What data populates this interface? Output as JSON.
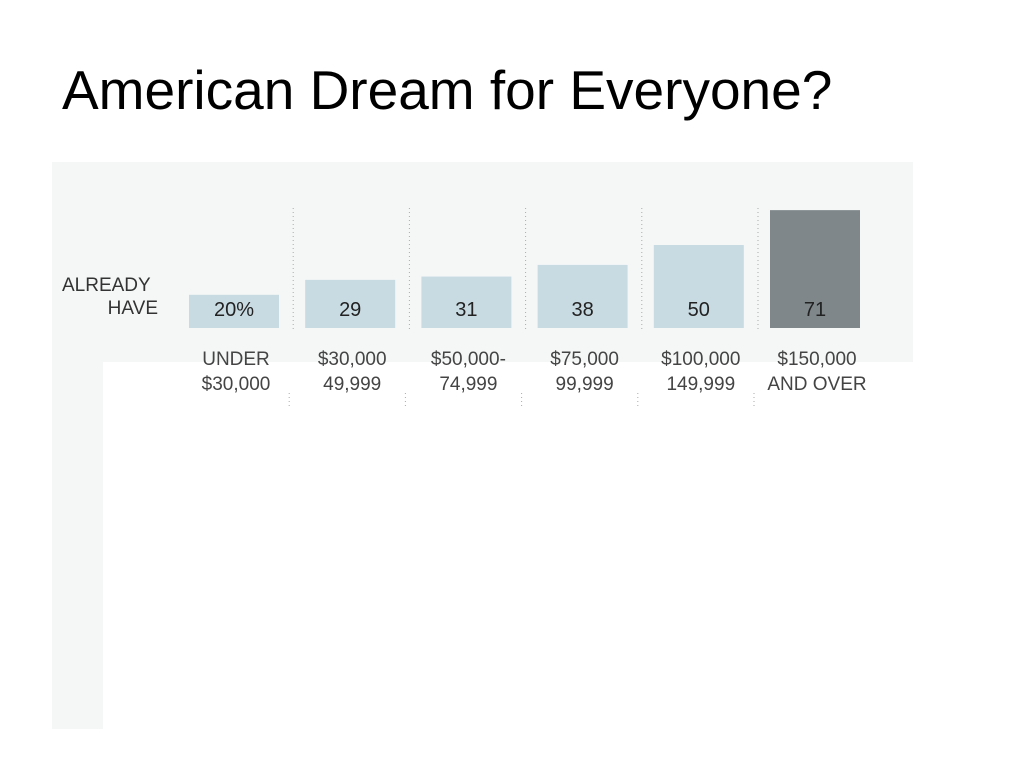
{
  "title": "American Dream for Everyone?",
  "chart_data": {
    "type": "bar",
    "series_label": [
      "ALREADY",
      "HAVE"
    ],
    "categories": [
      [
        "UNDER",
        "$30,000"
      ],
      [
        "$30,000",
        "49,999"
      ],
      [
        "$50,000-",
        "74,999"
      ],
      [
        "$75,000",
        "99,999"
      ],
      [
        "$100,000",
        "149,999"
      ],
      [
        "$150,000",
        "AND OVER"
      ]
    ],
    "values": [
      20,
      29,
      31,
      38,
      50,
      71
    ],
    "value_labels": [
      "20%",
      "29",
      "31",
      "38",
      "50",
      "71"
    ],
    "unit": "%",
    "ylim": [
      0,
      100
    ],
    "grid": false,
    "colors": {
      "bar": "#c9dbe2",
      "highlight_bar": "#7f878b",
      "background": "#f5f7f7",
      "divider": "#aaaaaa"
    },
    "highlight_index": 5
  }
}
